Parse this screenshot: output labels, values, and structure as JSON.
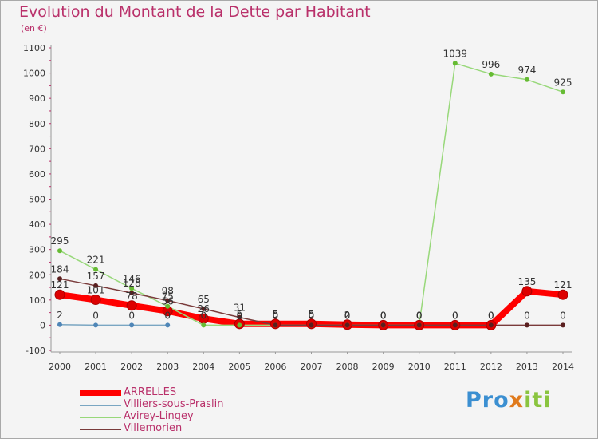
{
  "chart_data": {
    "type": "line",
    "title": "Evolution du Montant de la Dette par Habitant",
    "unit": "(en €)",
    "x": [
      "2000",
      "2001",
      "2002",
      "2003",
      "2004",
      "2005",
      "2006",
      "2007",
      "2008",
      "2009",
      "2010",
      "2011",
      "2012",
      "2013",
      "2014"
    ],
    "ylim": [
      -100,
      1100
    ],
    "yticks": [
      -100,
      0,
      100,
      200,
      300,
      400,
      500,
      600,
      700,
      800,
      900,
      1000,
      1100
    ],
    "grid": false,
    "legend_position": "bottom-left",
    "series": [
      {
        "name": "ARRELLES",
        "color": "#ff0000",
        "marker_color": "#cc0000",
        "values": [
          121,
          101,
          78,
          56,
          26,
          5,
          5,
          5,
          2,
          0,
          0,
          0,
          0,
          135,
          121
        ],
        "labels": [
          "121",
          "101",
          "78",
          "56",
          "26",
          "5",
          "5",
          "5",
          "2",
          "0",
          "0",
          "0",
          "0",
          "135",
          "121"
        ],
        "bold": true
      },
      {
        "name": "Villiers-sous-Praslin",
        "color": "#7aa6c2",
        "marker_color": "#4f86b7",
        "values": [
          2,
          0,
          0,
          0,
          null,
          null,
          null,
          null,
          null,
          null,
          null,
          null,
          null,
          null,
          null
        ],
        "labels": [
          "2",
          "0",
          "0",
          "0",
          "",
          "",
          "",
          "",
          "",
          "",
          "",
          "",
          "",
          "",
          ""
        ]
      },
      {
        "name": "Avirey-Lingey",
        "color": "#98d87a",
        "marker_color": "#66bb33",
        "values": [
          295,
          221,
          146,
          75,
          0,
          0,
          0,
          0,
          0,
          0,
          0,
          1039,
          996,
          974,
          925
        ],
        "labels": [
          "295",
          "221",
          "146",
          "75",
          "0",
          "0",
          "0",
          "0",
          "0",
          "0",
          "0",
          "1039",
          "996",
          "974",
          "925"
        ]
      },
      {
        "name": "Villemorien",
        "color": "#7a3b3b",
        "marker_color": "#5a1f1f",
        "values": [
          184,
          157,
          128,
          98,
          65,
          31,
          0,
          0,
          0,
          0,
          0,
          0,
          0,
          0,
          0
        ],
        "labels": [
          "184",
          "157",
          "128",
          "98",
          "65",
          "31",
          "0",
          "0",
          "0",
          "0",
          "0",
          "0",
          "0",
          "0",
          "0"
        ]
      }
    ]
  },
  "brand": {
    "part1": "Pro",
    "part2": "x",
    "part3": "iti"
  }
}
